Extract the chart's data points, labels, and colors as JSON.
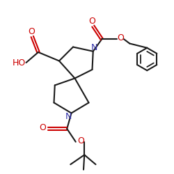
{
  "bg_color": "#ffffff",
  "bond_color": "#1a1a1a",
  "nitrogen_color": "#3333aa",
  "oxygen_color": "#cc0000",
  "lw": 1.5,
  "xlim": [
    0,
    10
  ],
  "ylim": [
    0,
    10
  ]
}
